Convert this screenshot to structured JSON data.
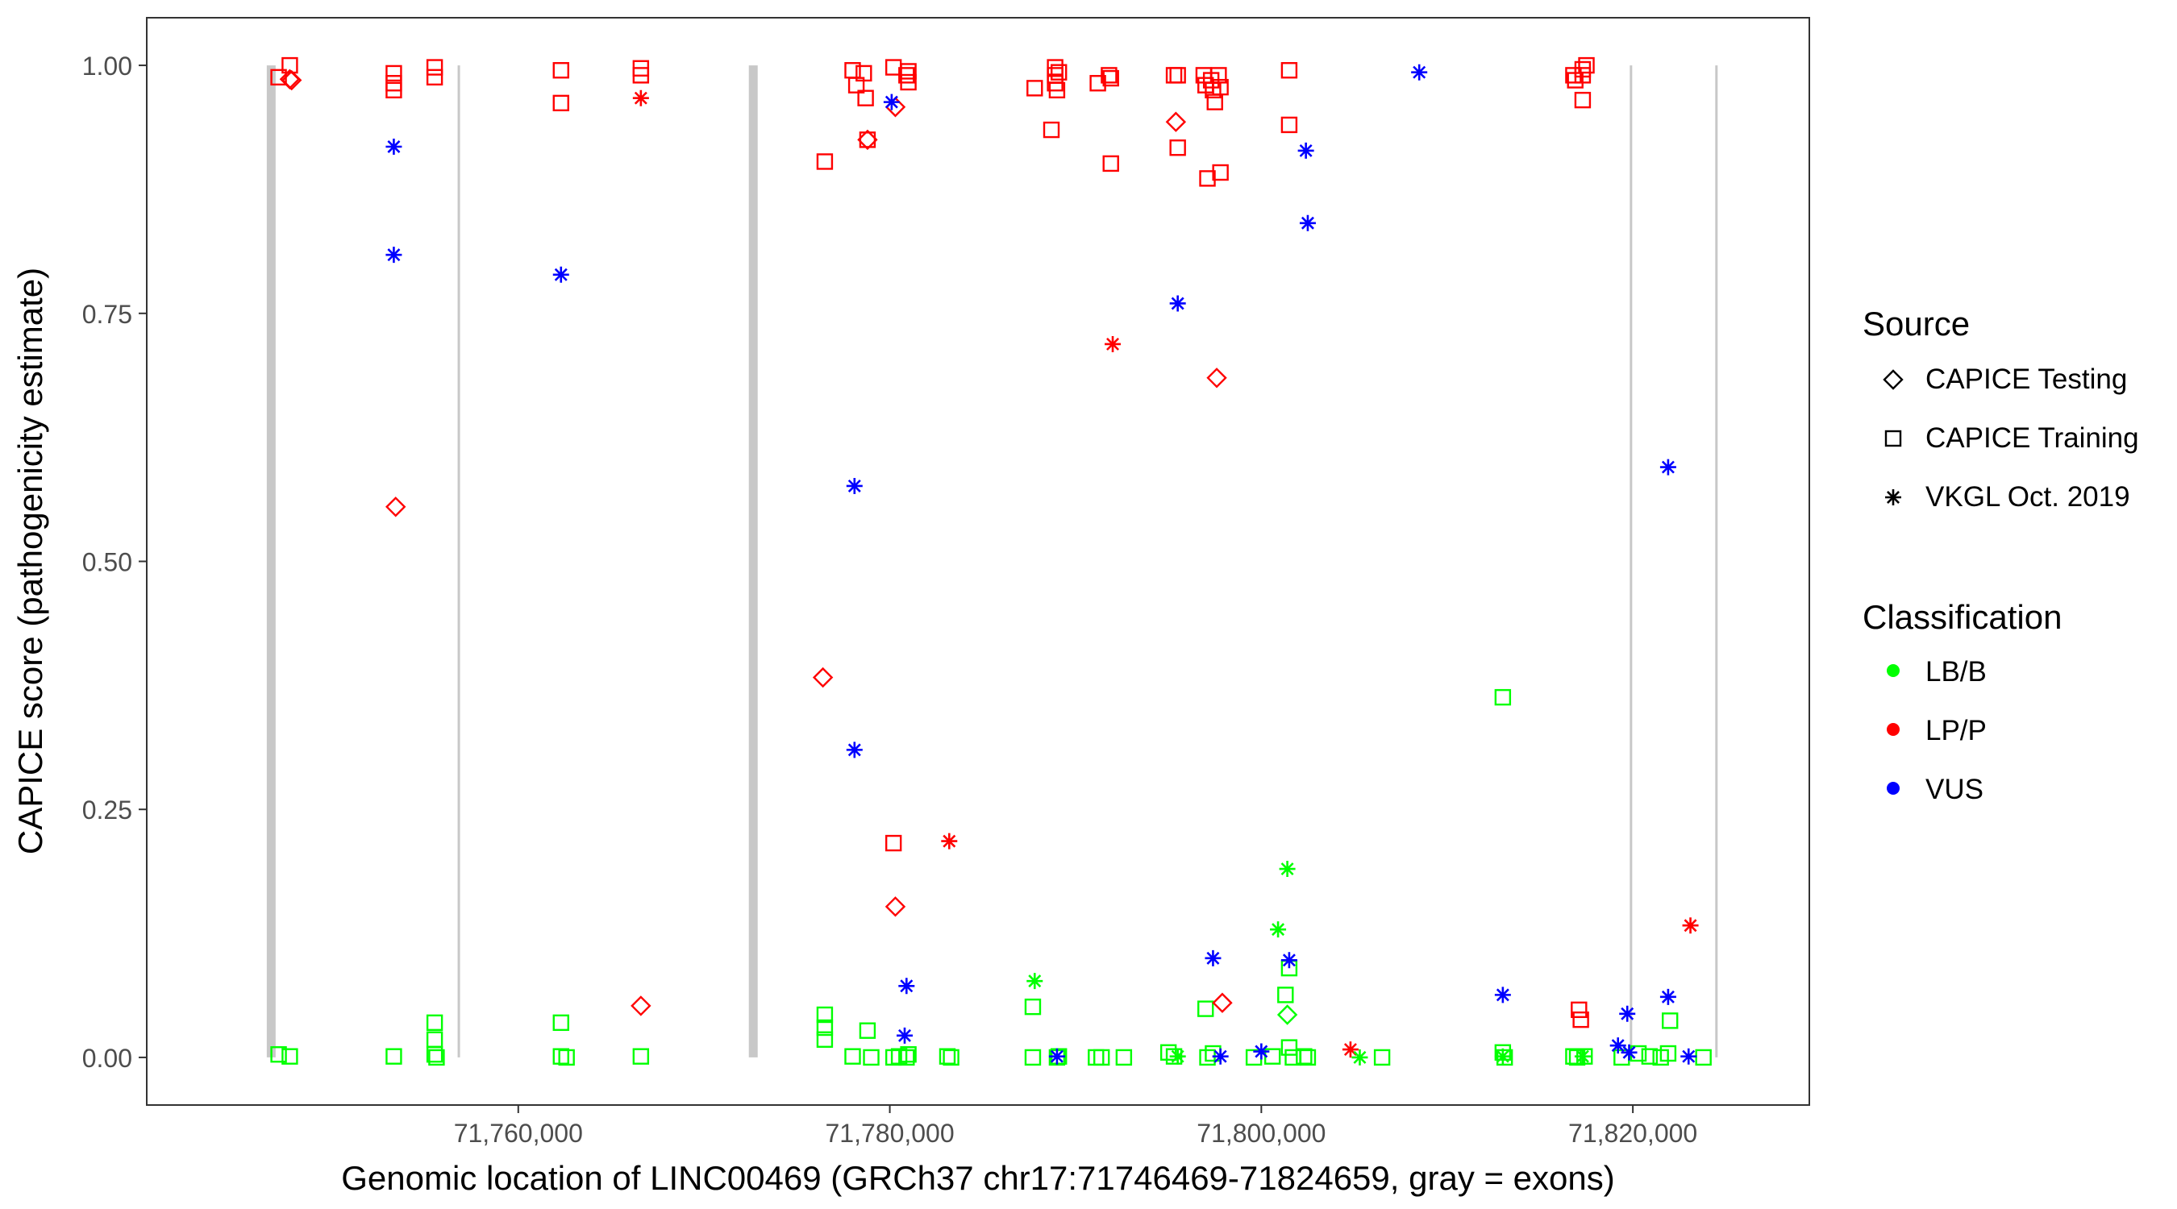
{
  "chart_data": {
    "type": "scatter",
    "xlabel": "Genomic location of LINC00469 (GRCh37 chr17:71746469-71824659, gray = exons)",
    "ylabel": "CAPICE score (pathogenicity estimate)",
    "xlim": [
      71740000,
      71829500
    ],
    "ylim": [
      -0.048,
      1.048
    ],
    "x_ticks": [
      71760000,
      71780000,
      71800000,
      71820000
    ],
    "x_tick_labels": [
      "71,760,000",
      "71,780,000",
      "71,800,000",
      "71,820,000"
    ],
    "y_ticks": [
      0.0,
      0.25,
      0.5,
      0.75,
      1.0
    ],
    "y_tick_labels": [
      "0.00",
      "0.25",
      "0.50",
      "0.75",
      "1.00"
    ],
    "grid": false,
    "legend_position": "right",
    "exons": [
      {
        "x": 71746700,
        "weight": "thick"
      },
      {
        "x": 71756800,
        "weight": "thin"
      },
      {
        "x": 71772650,
        "weight": "thick"
      },
      {
        "x": 71819900,
        "weight": "thin"
      },
      {
        "x": 71824500,
        "weight": "thin"
      }
    ],
    "legend": {
      "source": {
        "title": "Source",
        "items": [
          {
            "label": "CAPICE Testing",
            "shape": "diamond"
          },
          {
            "label": "CAPICE Training",
            "shape": "square"
          },
          {
            "label": "VKGL Oct. 2019",
            "shape": "asterisk"
          }
        ]
      },
      "classification": {
        "title": "Classification",
        "items": [
          {
            "label": "LB/B",
            "color": "#00ff00"
          },
          {
            "label": "LP/P",
            "color": "#ff0000"
          },
          {
            "label": "VUS",
            "color": "#0000ff"
          }
        ]
      }
    },
    "colors": {
      "LB/B": "#00ff00",
      "LP/P": "#ff0000",
      "VUS": "#0000ff",
      "exon": "#c8c8c8"
    },
    "series": [
      {
        "name": "CAPICE Training",
        "shape": "square",
        "points": [
          [
            71747100,
            0.988,
            "LP/P"
          ],
          [
            71747700,
            1.0,
            "LP/P"
          ],
          [
            71753300,
            0.992,
            "LP/P"
          ],
          [
            71753300,
            0.982,
            "LP/P"
          ],
          [
            71753300,
            0.975,
            "LP/P"
          ],
          [
            71755500,
            0.998,
            "LP/P"
          ],
          [
            71755500,
            0.988,
            "LP/P"
          ],
          [
            71762300,
            0.995,
            "LP/P"
          ],
          [
            71762300,
            0.962,
            "LP/P"
          ],
          [
            71766600,
            0.997,
            "LP/P"
          ],
          [
            71766600,
            0.99,
            "LP/P"
          ],
          [
            71776500,
            0.903,
            "LP/P"
          ],
          [
            71778000,
            0.995,
            "LP/P"
          ],
          [
            71778200,
            0.98,
            "LP/P"
          ],
          [
            71778600,
            0.992,
            "LP/P"
          ],
          [
            71778700,
            0.967,
            "LP/P"
          ],
          [
            71778800,
            0.925,
            "LP/P"
          ],
          [
            71780200,
            0.216,
            "LP/P"
          ],
          [
            71780200,
            0.998,
            "LP/P"
          ],
          [
            71780900,
            0.99,
            "LP/P"
          ],
          [
            71781000,
            0.994,
            "LP/P"
          ],
          [
            71781000,
            0.983,
            "LP/P"
          ],
          [
            71787800,
            0.977,
            "LP/P"
          ],
          [
            71788700,
            0.935,
            "LP/P"
          ],
          [
            71788900,
            0.998,
            "LP/P"
          ],
          [
            71788900,
            0.99,
            "LP/P"
          ],
          [
            71788900,
            0.982,
            "LP/P"
          ],
          [
            71789000,
            0.975,
            "LP/P"
          ],
          [
            71789100,
            0.993,
            "LP/P"
          ],
          [
            71791200,
            0.982,
            "LP/P"
          ],
          [
            71791800,
            0.99,
            "LP/P"
          ],
          [
            71791900,
            0.987,
            "LP/P"
          ],
          [
            71791900,
            0.901,
            "LP/P"
          ],
          [
            71795300,
            0.99,
            "LP/P"
          ],
          [
            71795500,
            0.99,
            "LP/P"
          ],
          [
            71795500,
            0.917,
            "LP/P"
          ],
          [
            71796900,
            0.99,
            "LP/P"
          ],
          [
            71797000,
            0.98,
            "LP/P"
          ],
          [
            71797100,
            0.886,
            "LP/P"
          ],
          [
            71797300,
            0.985,
            "LP/P"
          ],
          [
            71797400,
            0.975,
            "LP/P"
          ],
          [
            71797500,
            0.963,
            "LP/P"
          ],
          [
            71797700,
            0.99,
            "LP/P"
          ],
          [
            71797800,
            0.978,
            "LP/P"
          ],
          [
            71797800,
            0.892,
            "LP/P"
          ],
          [
            71801500,
            0.995,
            "LP/P"
          ],
          [
            71801500,
            0.94,
            "LP/P"
          ],
          [
            71816800,
            0.99,
            "LP/P"
          ],
          [
            71816900,
            0.985,
            "LP/P"
          ],
          [
            71817100,
            0.048,
            "LP/P"
          ],
          [
            71817200,
            0.038,
            "LP/P"
          ],
          [
            71817300,
            0.996,
            "LP/P"
          ],
          [
            71817300,
            0.99,
            "LP/P"
          ],
          [
            71817300,
            0.965,
            "LP/P"
          ],
          [
            71817500,
            1.0,
            "LP/P"
          ],
          [
            71747100,
            0.003,
            "LB/B"
          ],
          [
            71747700,
            0.001,
            "LB/B"
          ],
          [
            71753300,
            0.001,
            "LB/B"
          ],
          [
            71755500,
            0.035,
            "LB/B"
          ],
          [
            71755500,
            0.018,
            "LB/B"
          ],
          [
            71755500,
            0.003,
            "LB/B"
          ],
          [
            71755600,
            0.0,
            "LB/B"
          ],
          [
            71762300,
            0.035,
            "LB/B"
          ],
          [
            71762300,
            0.001,
            "LB/B"
          ],
          [
            71762600,
            0.0,
            "LB/B"
          ],
          [
            71766600,
            0.001,
            "LB/B"
          ],
          [
            71776500,
            0.043,
            "LB/B"
          ],
          [
            71776500,
            0.03,
            "LB/B"
          ],
          [
            71776500,
            0.018,
            "LB/B"
          ],
          [
            71778000,
            0.001,
            "LB/B"
          ],
          [
            71778800,
            0.027,
            "LB/B"
          ],
          [
            71779000,
            0.0,
            "LB/B"
          ],
          [
            71780200,
            0.0,
            "LB/B"
          ],
          [
            71780500,
            0.001,
            "LB/B"
          ],
          [
            71780900,
            0.0,
            "LB/B"
          ],
          [
            71781000,
            0.003,
            "LB/B"
          ],
          [
            71783100,
            0.001,
            "LB/B"
          ],
          [
            71783300,
            0.0,
            "LB/B"
          ],
          [
            71787700,
            0.051,
            "LB/B"
          ],
          [
            71787700,
            0.0,
            "LB/B"
          ],
          [
            71789000,
            0.0,
            "LB/B"
          ],
          [
            71789100,
            0.001,
            "LB/B"
          ],
          [
            71791100,
            0.0,
            "LB/B"
          ],
          [
            71791400,
            0.0,
            "LB/B"
          ],
          [
            71792600,
            0.0,
            "LB/B"
          ],
          [
            71795000,
            0.005,
            "LB/B"
          ],
          [
            71795300,
            0.001,
            "LB/B"
          ],
          [
            71797000,
            0.049,
            "LB/B"
          ],
          [
            71797100,
            0.0,
            "LB/B"
          ],
          [
            71797400,
            0.004,
            "LB/B"
          ],
          [
            71799600,
            0.0,
            "LB/B"
          ],
          [
            71800600,
            0.001,
            "LB/B"
          ],
          [
            71801300,
            0.063,
            "LB/B"
          ],
          [
            71801500,
            0.09,
            "LB/B"
          ],
          [
            71801500,
            0.01,
            "LB/B"
          ],
          [
            71801700,
            0.0,
            "LB/B"
          ],
          [
            71802300,
            0.001,
            "LB/B"
          ],
          [
            71802500,
            0.0,
            "LB/B"
          ],
          [
            71806500,
            0.0,
            "LB/B"
          ],
          [
            71813000,
            0.363,
            "LB/B"
          ],
          [
            71813000,
            0.005,
            "LB/B"
          ],
          [
            71813100,
            0.0,
            "LB/B"
          ],
          [
            71816800,
            0.001,
            "LB/B"
          ],
          [
            71817000,
            0.0,
            "LB/B"
          ],
          [
            71817400,
            0.001,
            "LB/B"
          ],
          [
            71819400,
            0.0,
            "LB/B"
          ],
          [
            71820300,
            0.004,
            "LB/B"
          ],
          [
            71820900,
            0.001,
            "LB/B"
          ],
          [
            71821500,
            0.0,
            "LB/B"
          ],
          [
            71821900,
            0.004,
            "LB/B"
          ],
          [
            71822000,
            0.037,
            "LB/B"
          ],
          [
            71823800,
            0.0,
            "LB/B"
          ]
        ]
      },
      {
        "name": "CAPICE Testing",
        "shape": "diamond",
        "points": [
          [
            71747700,
            0.986,
            "LP/P"
          ],
          [
            71747800,
            0.985,
            "LP/P"
          ],
          [
            71753400,
            0.555,
            "LP/P"
          ],
          [
            71766600,
            0.052,
            "LP/P"
          ],
          [
            71776400,
            0.383,
            "LP/P"
          ],
          [
            71778800,
            0.925,
            "LP/P"
          ],
          [
            71780300,
            0.958,
            "LP/P"
          ],
          [
            71780300,
            0.152,
            "LP/P"
          ],
          [
            71795400,
            0.943,
            "LP/P"
          ],
          [
            71797600,
            0.685,
            "LP/P"
          ],
          [
            71797900,
            0.055,
            "LP/P"
          ],
          [
            71801400,
            0.043,
            "LB/B"
          ]
        ]
      },
      {
        "name": "VKGL Oct. 2019",
        "shape": "asterisk",
        "points": [
          [
            71753300,
            0.918,
            "VUS"
          ],
          [
            71753300,
            0.809,
            "VUS"
          ],
          [
            71762300,
            0.789,
            "VUS"
          ],
          [
            71778100,
            0.576,
            "VUS"
          ],
          [
            71778100,
            0.31,
            "VUS"
          ],
          [
            71780100,
            0.963,
            "VUS"
          ],
          [
            71780900,
            0.072,
            "VUS"
          ],
          [
            71780800,
            0.022,
            "VUS"
          ],
          [
            71789000,
            0.001,
            "VUS"
          ],
          [
            71795500,
            0.76,
            "VUS"
          ],
          [
            71797400,
            0.1,
            "VUS"
          ],
          [
            71797800,
            0.001,
            "VUS"
          ],
          [
            71800000,
            0.006,
            "VUS"
          ],
          [
            71801500,
            0.098,
            "VUS"
          ],
          [
            71802400,
            0.914,
            "VUS"
          ],
          [
            71802500,
            0.841,
            "VUS"
          ],
          [
            71808500,
            0.993,
            "VUS"
          ],
          [
            71813000,
            0.063,
            "VUS"
          ],
          [
            71819200,
            0.012,
            "VUS"
          ],
          [
            71819700,
            0.044,
            "VUS"
          ],
          [
            71819800,
            0.005,
            "VUS"
          ],
          [
            71821900,
            0.595,
            "VUS"
          ],
          [
            71821900,
            0.061,
            "VUS"
          ],
          [
            71823000,
            0.001,
            "VUS"
          ],
          [
            71766600,
            0.967,
            "LP/P"
          ],
          [
            71783200,
            0.218,
            "LP/P"
          ],
          [
            71792000,
            0.719,
            "LP/P"
          ],
          [
            71804800,
            0.008,
            "LP/P"
          ],
          [
            71823100,
            0.133,
            "LP/P"
          ],
          [
            71787800,
            0.077,
            "LB/B"
          ],
          [
            71800900,
            0.129,
            "LB/B"
          ],
          [
            71801400,
            0.19,
            "LB/B"
          ],
          [
            71795500,
            0.001,
            "LB/B"
          ],
          [
            71805300,
            0.0,
            "LB/B"
          ],
          [
            71813000,
            0.001,
            "LB/B"
          ],
          [
            71817300,
            0.001,
            "LB/B"
          ]
        ]
      }
    ]
  }
}
